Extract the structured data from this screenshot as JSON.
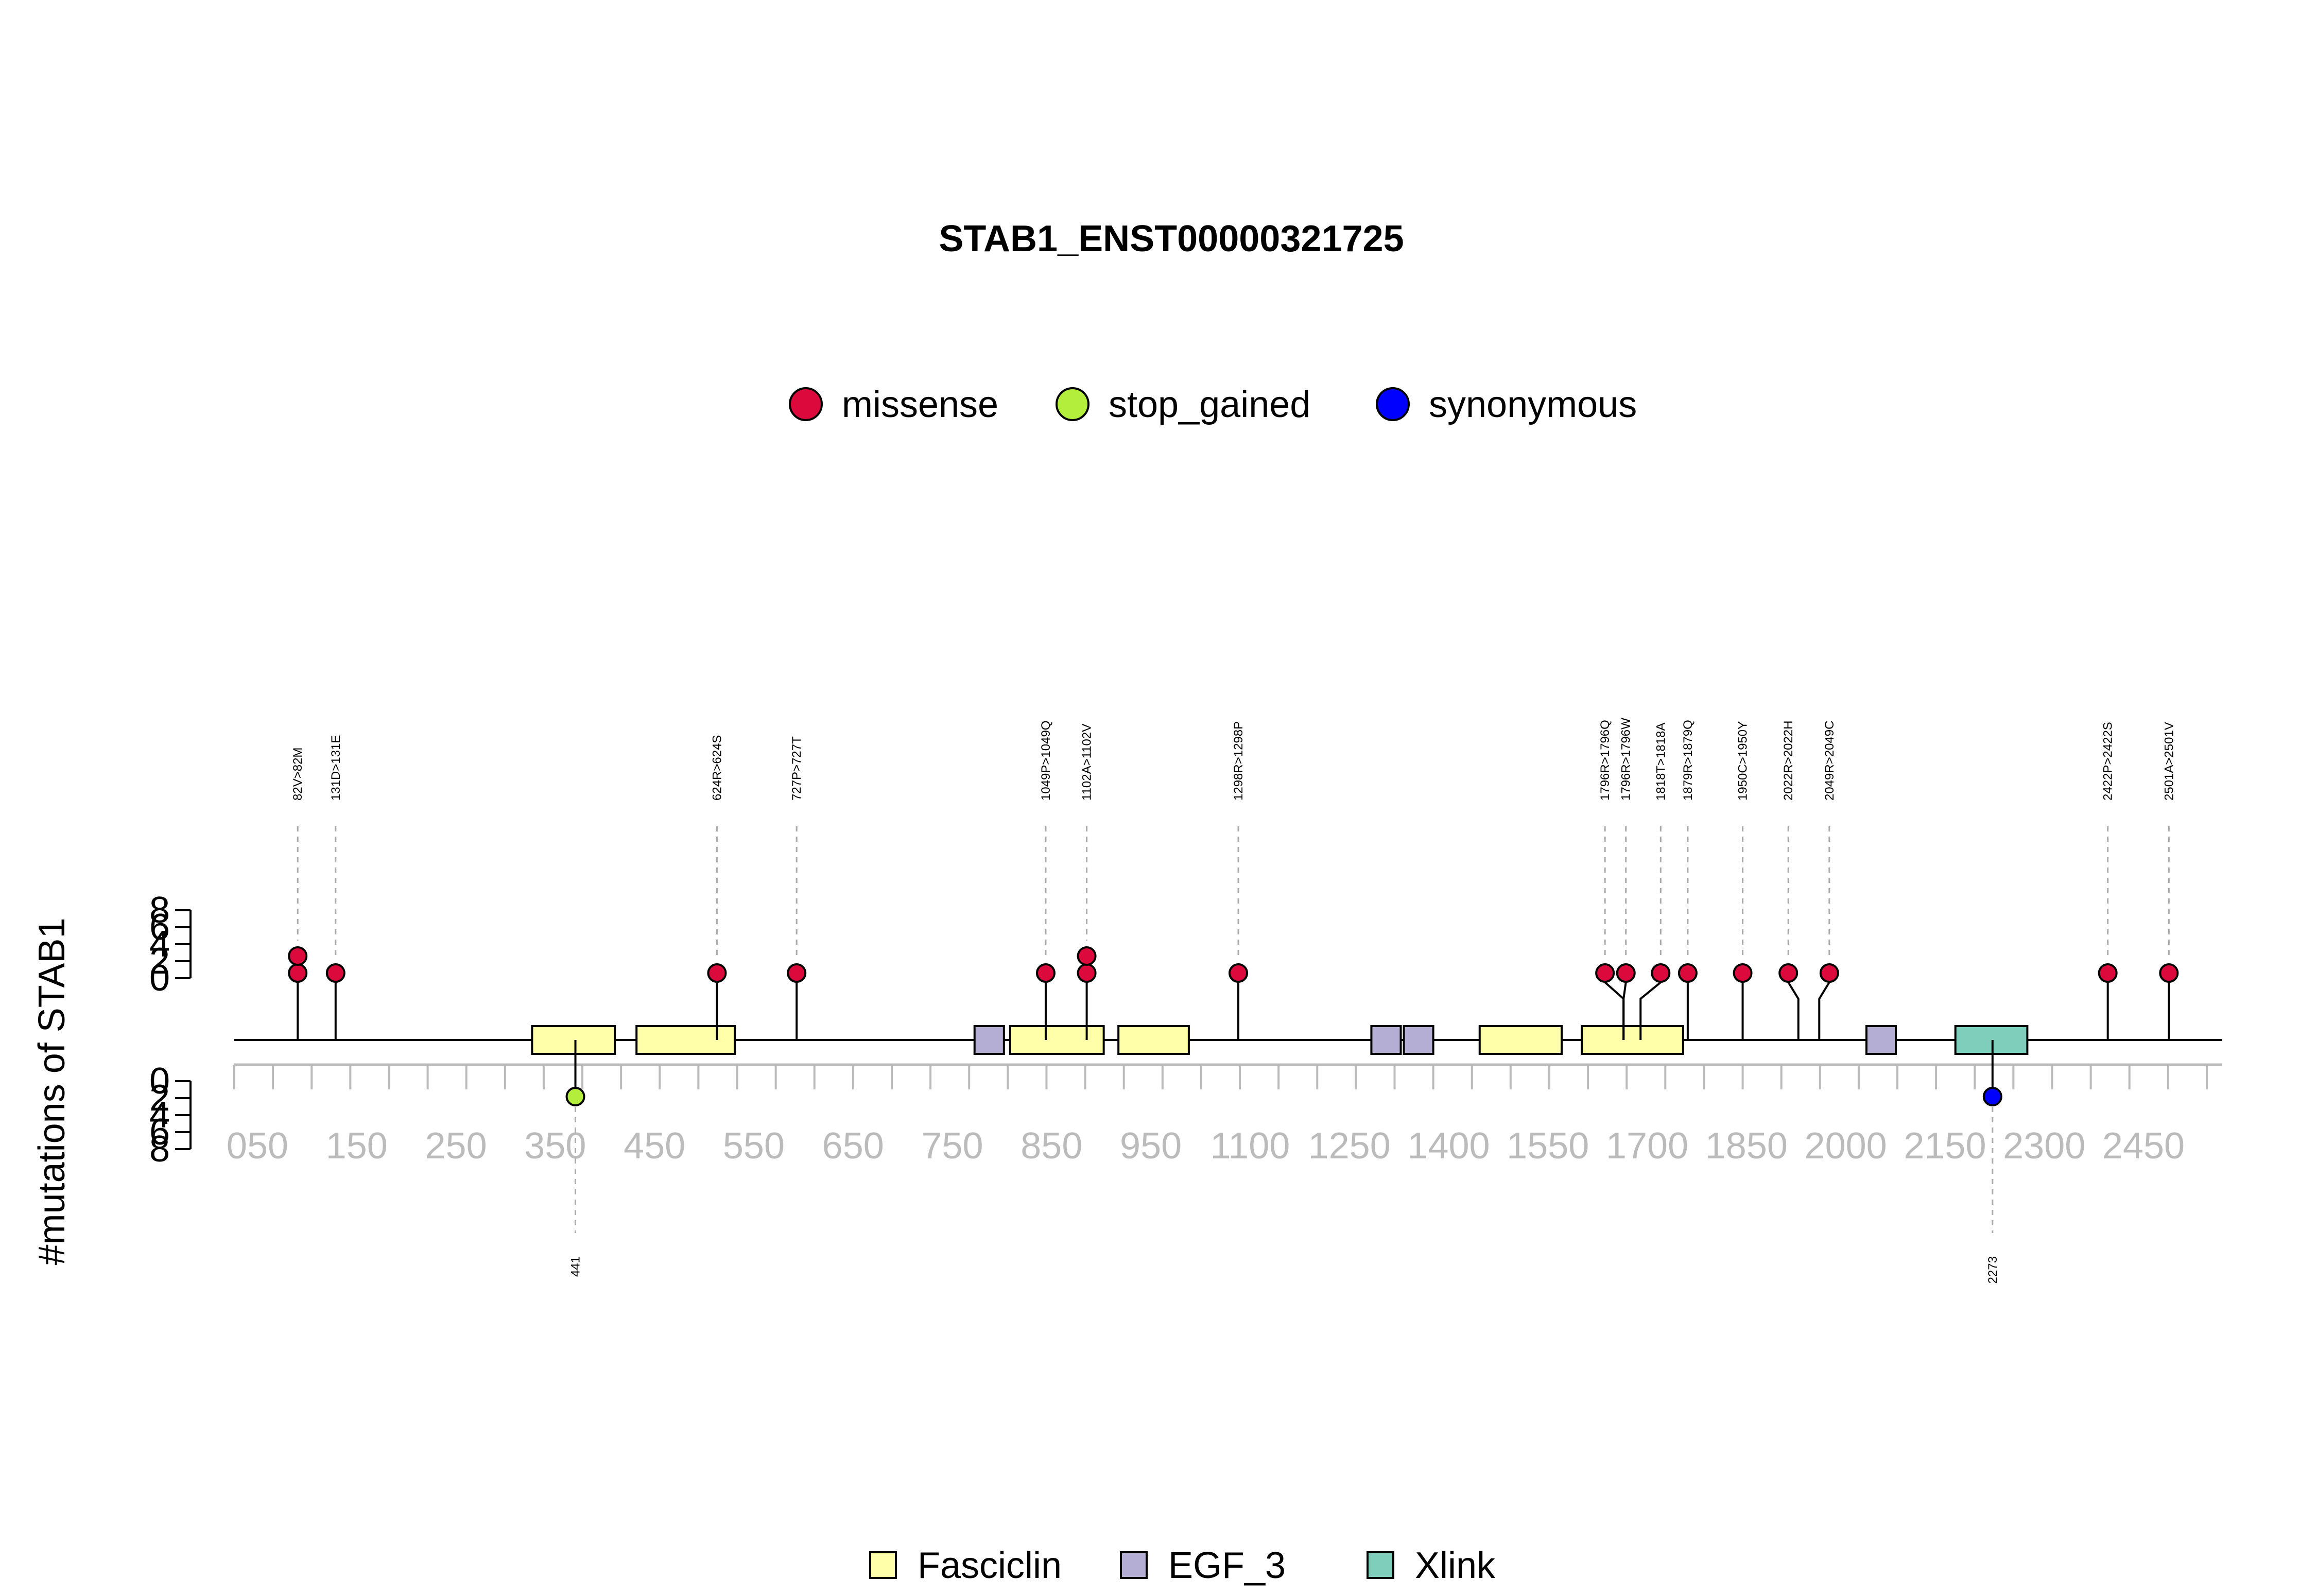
{
  "chart_data": {
    "type": "lollipop",
    "title": "STAB1_ENST00000321725",
    "ylabel": "#mutations of STAB1",
    "ytick_labels": [
      "0",
      "2",
      "4",
      "6",
      "8"
    ],
    "xtick_labels": [
      "050",
      "150",
      "250",
      "350",
      "450",
      "550",
      "650",
      "750",
      "850",
      "950",
      "1100",
      "1250",
      "1400",
      "1550",
      "1700",
      "1850",
      "2000",
      "2150",
      "2300",
      "2450"
    ],
    "protein_length": 2570,
    "mutation_legend": [
      {
        "name": "missense",
        "color": "#dc0a3c"
      },
      {
        "name": "stop_gained",
        "color": "#b4ee3c"
      },
      {
        "name": "synonymous",
        "color": "#0000ff"
      }
    ],
    "domain_legend": [
      {
        "name": "Fasciclin",
        "color": "#ffffaa"
      },
      {
        "name": "EGF_3",
        "color": "#b4aed4"
      },
      {
        "name": "Xlink",
        "color": "#7fcdbb"
      }
    ],
    "domains": [
      {
        "type": "Fasciclin",
        "start": 385,
        "end": 492
      },
      {
        "type": "Fasciclin",
        "start": 520,
        "end": 647
      },
      {
        "type": "EGF_3",
        "start": 957,
        "end": 995
      },
      {
        "type": "Fasciclin",
        "start": 1003,
        "end": 1124
      },
      {
        "type": "Fasciclin",
        "start": 1143,
        "end": 1234
      },
      {
        "type": "EGF_3",
        "start": 1470,
        "end": 1508
      },
      {
        "type": "EGF_3",
        "start": 1512,
        "end": 1550
      },
      {
        "type": "Fasciclin",
        "start": 1610,
        "end": 1716
      },
      {
        "type": "Fasciclin",
        "start": 1742,
        "end": 1873
      },
      {
        "type": "EGF_3",
        "start": 2110,
        "end": 2148
      },
      {
        "type": "Xlink",
        "start": 2225,
        "end": 2318
      }
    ],
    "mutations_top": [
      {
        "label": "82V>82M",
        "pos": 82,
        "count": 2,
        "type": "missense"
      },
      {
        "label": "131D>131E",
        "pos": 131,
        "count": 1,
        "type": "missense"
      },
      {
        "label": "624R>624S",
        "pos": 624,
        "count": 1,
        "type": "missense"
      },
      {
        "label": "727P>727T",
        "pos": 727,
        "count": 1,
        "type": "missense"
      },
      {
        "label": "1049P>1049Q",
        "pos": 1049,
        "count": 1,
        "type": "missense"
      },
      {
        "label": "1102A>1102V",
        "pos": 1102,
        "count": 2,
        "type": "missense"
      },
      {
        "label": "1298R>1298P",
        "pos": 1298,
        "count": 1,
        "type": "missense"
      },
      {
        "label": "1796R>1796Q",
        "pos": 1796,
        "count": 1,
        "type": "missense",
        "disp": 1772
      },
      {
        "label": "1796R>1796W",
        "pos": 1796,
        "count": 1,
        "type": "missense",
        "disp": 1799
      },
      {
        "label": "1818T>1818A",
        "pos": 1818,
        "count": 1,
        "type": "missense",
        "disp": 1844
      },
      {
        "label": "1879R>1879Q",
        "pos": 1879,
        "count": 1,
        "type": "missense"
      },
      {
        "label": "1950C>1950Y",
        "pos": 1950,
        "count": 1,
        "type": "missense"
      },
      {
        "label": "2022R>2022H",
        "pos": 2022,
        "count": 1,
        "type": "missense",
        "disp": 2009
      },
      {
        "label": "2049R>2049C",
        "pos": 2049,
        "count": 1,
        "type": "missense",
        "disp": 2062
      },
      {
        "label": "2422P>2422S",
        "pos": 2422,
        "count": 1,
        "type": "missense"
      },
      {
        "label": "2501A>2501V",
        "pos": 2501,
        "count": 1,
        "type": "missense"
      }
    ],
    "mutations_bottom": [
      {
        "label": "441",
        "pos": 441,
        "count": 1,
        "type": "stop_gained"
      },
      {
        "label": "2273",
        "pos": 2273,
        "count": 1,
        "type": "synonymous"
      }
    ]
  }
}
